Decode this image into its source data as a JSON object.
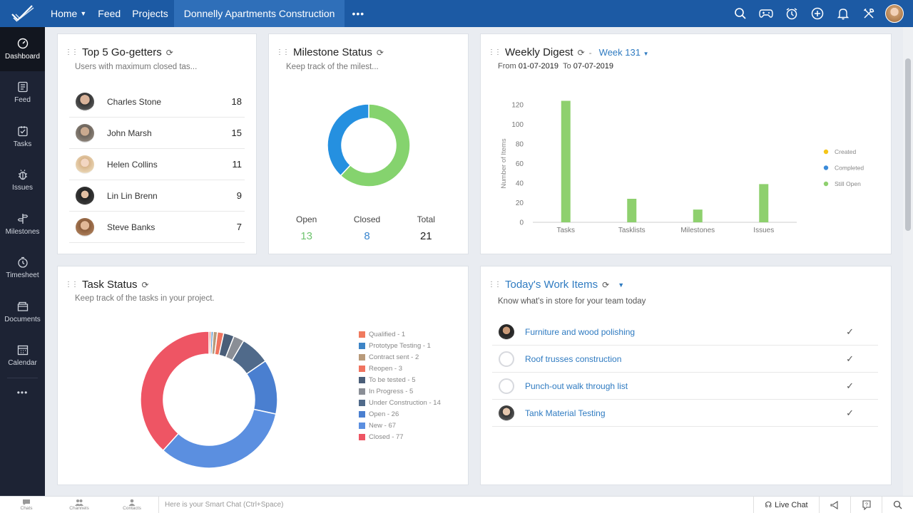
{
  "topbar": {
    "nav": {
      "home": "Home",
      "feed": "Feed",
      "projects": "Projects",
      "project_name": "Donnelly Apartments Construction",
      "more": "•••"
    },
    "icons": [
      "search-icon",
      "gamepad-icon",
      "timer-icon",
      "add-icon",
      "bell-icon",
      "tools-icon",
      "user-avatar"
    ]
  },
  "sidebar": {
    "items": [
      {
        "label": "Dashboard",
        "icon": "dashboard-icon"
      },
      {
        "label": "Feed",
        "icon": "feed-icon"
      },
      {
        "label": "Tasks",
        "icon": "tasks-icon"
      },
      {
        "label": "Issues",
        "icon": "bug-icon"
      },
      {
        "label": "Milestones",
        "icon": "signpost-icon"
      },
      {
        "label": "Timesheet",
        "icon": "clock-icon"
      },
      {
        "label": "Documents",
        "icon": "folder-icon"
      },
      {
        "label": "Calendar",
        "icon": "calendar-icon"
      }
    ],
    "more": "•••"
  },
  "gogetters": {
    "title": "Top 5 Go-getters",
    "subtitle": "Users with maximum closed tas...",
    "rows": [
      {
        "name": "Charles Stone",
        "count": "18"
      },
      {
        "name": "John Marsh",
        "count": "15"
      },
      {
        "name": "Helen Collins",
        "count": "11"
      },
      {
        "name": "Lin Lin Brenn",
        "count": "9"
      },
      {
        "name": "Steve Banks",
        "count": "7"
      }
    ]
  },
  "milestone": {
    "title": "Milestone Status",
    "subtitle": "Keep track of the milest...",
    "open_label": "Open",
    "open_value": "13",
    "closed_label": "Closed",
    "closed_value": "8",
    "total_label": "Total",
    "total_value": "21"
  },
  "weekly": {
    "title": "Weekly Digest",
    "week": "Week 131",
    "from_label": "From",
    "from": "01-07-2019",
    "to_label": "To",
    "to": "07-07-2019"
  },
  "taskstatus": {
    "title": "Task Status",
    "subtitle": "Keep track of the tasks in your project."
  },
  "workitems": {
    "title": "Today's Work Items",
    "subtitle": "Know what's in store for your team today",
    "rows": [
      {
        "name": "Furniture and wood polishing",
        "avatar": "person"
      },
      {
        "name": "Roof trusses construction",
        "avatar": "empty"
      },
      {
        "name": "Punch-out walk through list",
        "avatar": "empty"
      },
      {
        "name": "Tank Material Testing",
        "avatar": "person"
      }
    ],
    "check": "✓"
  },
  "bottombar": {
    "chats": "Chats",
    "channels": "Channels",
    "contacts": "Contacts",
    "smart_chat": "Here is your Smart Chat (Ctrl+Space)",
    "live_chat": "Live Chat"
  },
  "chart_data": [
    {
      "type": "bar",
      "title": "Weekly Digest",
      "ylabel": "Number of Items",
      "categories": [
        "Tasks",
        "Tasklists",
        "Milestones",
        "Issues"
      ],
      "series": [
        {
          "name": "Created",
          "color": "#f5c518",
          "values": [
            0,
            0,
            0,
            0
          ]
        },
        {
          "name": "Completed",
          "color": "#3b8bd9",
          "values": [
            0,
            0,
            0,
            0
          ]
        },
        {
          "name": "Still Open",
          "color": "#8ed06e",
          "values": [
            124,
            24,
            13,
            39
          ]
        }
      ],
      "yticks": [
        0,
        20,
        40,
        60,
        80,
        100,
        120
      ],
      "ylim": [
        0,
        130
      ],
      "legend": "right"
    },
    {
      "type": "pie",
      "title": "Milestone Status",
      "donut": true,
      "slices": [
        {
          "label": "Open",
          "value": 13,
          "color": "#85d36e"
        },
        {
          "label": "Closed",
          "value": 8,
          "color": "#2590e0"
        }
      ]
    },
    {
      "type": "pie",
      "title": "Task Status",
      "donut": true,
      "legend": "right",
      "slices": [
        {
          "label": "Qualified",
          "value": 1,
          "color": "#f07a5e"
        },
        {
          "label": "Prototype Testing",
          "value": 1,
          "color": "#3d84c6"
        },
        {
          "label": "Contract sent",
          "value": 2,
          "color": "#b89a7a"
        },
        {
          "label": "Reopen",
          "value": 3,
          "color": "#f0735f"
        },
        {
          "label": "To be tested",
          "value": 5,
          "color": "#4a5e78"
        },
        {
          "label": "In Progress",
          "value": 5,
          "color": "#8a8e96"
        },
        {
          "label": "Under Construction",
          "value": 14,
          "color": "#506a8a"
        },
        {
          "label": "Open",
          "value": 26,
          "color": "#4a7fd0"
        },
        {
          "label": "New",
          "value": 67,
          "color": "#5b8fe0"
        },
        {
          "label": "Closed",
          "value": 77,
          "color": "#ee5564"
        }
      ]
    }
  ]
}
